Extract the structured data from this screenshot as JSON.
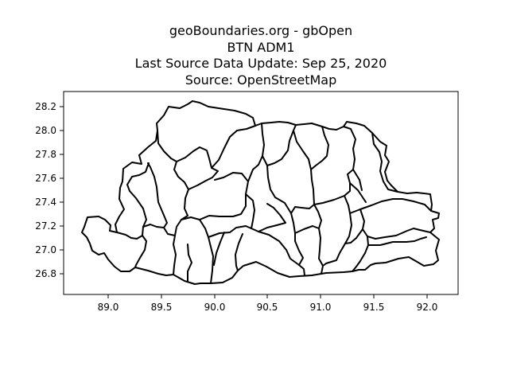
{
  "title_lines": [
    "geoBoundaries.org - gbOpen",
    "BTN ADM1",
    "Last Source Data Update: Sep 25, 2020",
    "Source: OpenStreetMap"
  ],
  "map": {
    "x_ticks": [
      "89.0",
      "89.5",
      "90.0",
      "90.5",
      "91.0",
      "91.5",
      "92.0"
    ],
    "y_ticks": [
      "26.8",
      "27.0",
      "27.2",
      "27.4",
      "27.6",
      "27.8",
      "28.0",
      "28.2"
    ],
    "xlim": [
      88.56,
      92.3
    ],
    "ylim": [
      26.64,
      28.3
    ],
    "boundary_color": "#000000",
    "region_count_shown": 20
  }
}
